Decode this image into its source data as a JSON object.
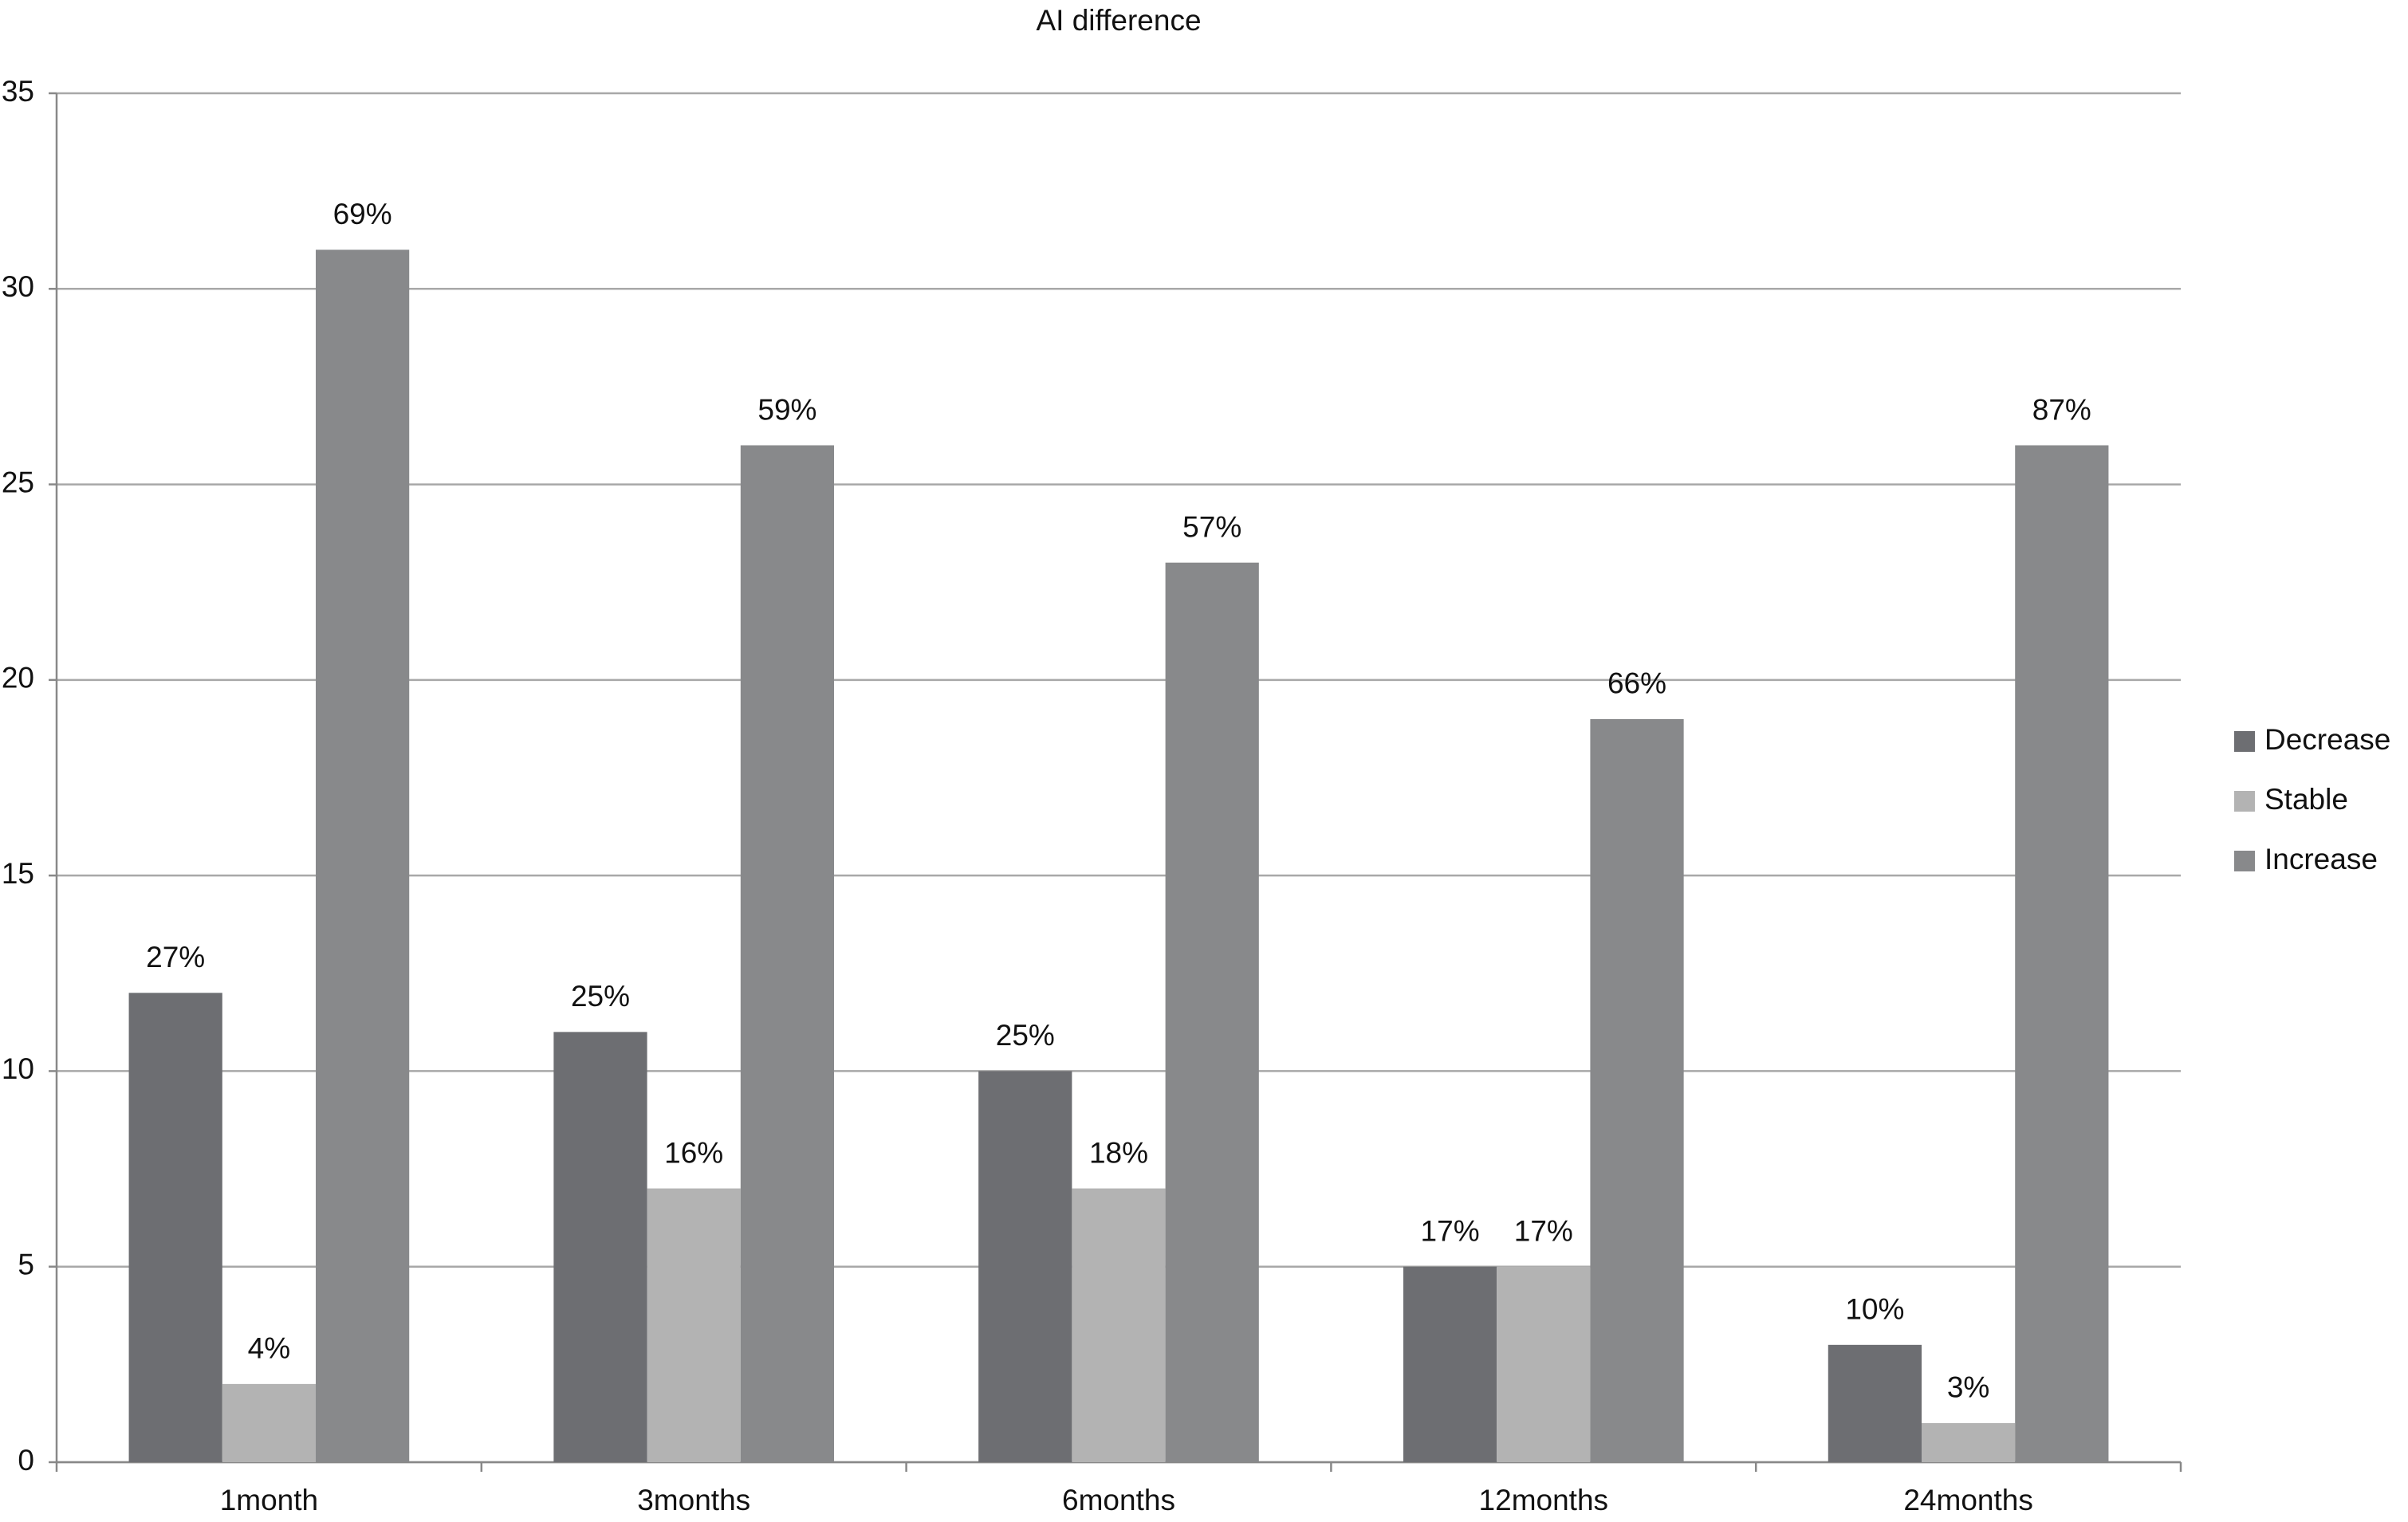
{
  "chart_data": {
    "type": "bar",
    "title": "AI difference",
    "categories": [
      "1month",
      "3months",
      "6months",
      "12months",
      "24months"
    ],
    "series": [
      {
        "name": "Decrease",
        "color": "#6d6e72",
        "values": [
          12,
          11,
          10,
          5,
          3
        ],
        "labels": [
          "27%",
          "25%",
          "25%",
          "17%",
          "10%"
        ]
      },
      {
        "name": "Stable",
        "color": "#b3b3b3",
        "values": [
          2,
          7,
          7,
          5,
          1
        ],
        "labels": [
          "4%",
          "16%",
          "18%",
          "17%",
          "3%"
        ]
      },
      {
        "name": "Increase",
        "color": "#88898b",
        "values": [
          31,
          26,
          23,
          19,
          26
        ],
        "labels": [
          "69%",
          "59%",
          "57%",
          "66%",
          "87%"
        ]
      }
    ],
    "ylim": [
      0,
      35
    ],
    "yticks": [
      0,
      5,
      10,
      15,
      20,
      25,
      30,
      35
    ],
    "grid": true,
    "legend": "right"
  }
}
